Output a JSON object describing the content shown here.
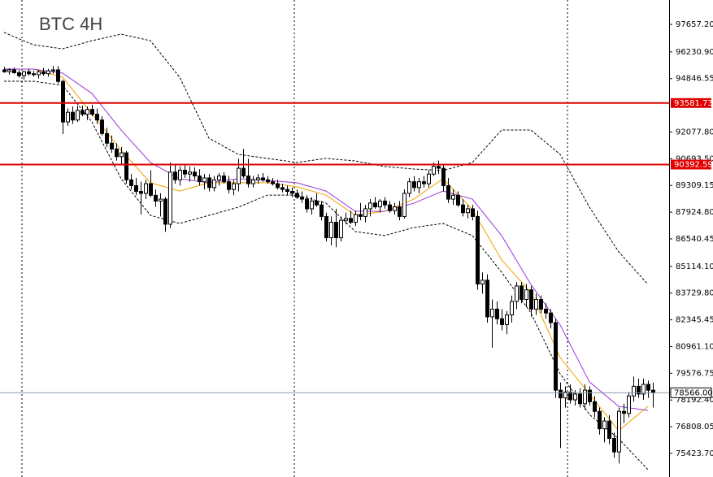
{
  "chart_data": {
    "type": "candlestick",
    "title": "BTC 4H",
    "ylim": [
      74200,
      98920
    ],
    "yticks": [
      {
        "value": 97657.2,
        "label": "97657.20"
      },
      {
        "value": 96230.9,
        "label": "96230.90"
      },
      {
        "value": 94846.55,
        "label": "94846.55"
      },
      {
        "value": 92077.8,
        "label": "92077.80"
      },
      {
        "value": 90693.5,
        "label": "90693.50"
      },
      {
        "value": 89309.15,
        "label": "89309.15"
      },
      {
        "value": 87924.8,
        "label": "87924.80"
      },
      {
        "value": 86540.45,
        "label": "86540.45"
      },
      {
        "value": 85114.1,
        "label": "85114.10"
      },
      {
        "value": 83729.8,
        "label": "83729.80"
      },
      {
        "value": 82345.45,
        "label": "82345.45"
      },
      {
        "value": 80961.1,
        "label": "80961.10"
      },
      {
        "value": 79576.75,
        "label": "79576.75"
      },
      {
        "value": 78192.4,
        "label": "78192.40"
      },
      {
        "value": 76808.05,
        "label": "76808.05"
      },
      {
        "value": 75423.7,
        "label": "75423.70"
      }
    ],
    "levels": [
      {
        "value": 93581.73,
        "color": "#e00000"
      },
      {
        "value": 90392.59,
        "color": "#e00000"
      }
    ],
    "last_price": {
      "value": 78566,
      "label": "78566.00",
      "color": "#8a9aa8"
    },
    "ohlc": [
      [
        95300,
        95450,
        95150,
        95200
      ],
      [
        95200,
        95380,
        95050,
        95300
      ],
      [
        95300,
        95420,
        95100,
        95150
      ],
      [
        95150,
        95300,
        94900,
        95000
      ],
      [
        95000,
        95250,
        94800,
        95200
      ],
      [
        95200,
        95340,
        95000,
        95100
      ],
      [
        95100,
        95260,
        94950,
        95050
      ],
      [
        95050,
        95300,
        94850,
        95200
      ],
      [
        95200,
        95400,
        95000,
        95100
      ],
      [
        95100,
        95350,
        94950,
        95250
      ],
      [
        95250,
        95500,
        95100,
        95300
      ],
      [
        95300,
        95500,
        94600,
        94700
      ],
      [
        94700,
        94800,
        91970,
        92600
      ],
      [
        92600,
        93300,
        92400,
        93100
      ],
      [
        93100,
        93400,
        92500,
        92700
      ],
      [
        92700,
        93450,
        92600,
        93200
      ],
      [
        93200,
        93450,
        92900,
        93000
      ],
      [
        93000,
        93400,
        92700,
        93250
      ],
      [
        93250,
        93500,
        92900,
        93000
      ],
      [
        93000,
        93300,
        92500,
        92700
      ],
      [
        92700,
        92900,
        91900,
        92000
      ],
      [
        92000,
        92300,
        91300,
        91500
      ],
      [
        91500,
        91900,
        91000,
        91200
      ],
      [
        91200,
        91500,
        90600,
        90800
      ],
      [
        90800,
        91300,
        90400,
        91000
      ],
      [
        91000,
        91100,
        89400,
        89600
      ],
      [
        89600,
        89900,
        89100,
        89300
      ],
      [
        89300,
        89700,
        88800,
        89000
      ],
      [
        89000,
        89500,
        87800,
        88900
      ],
      [
        88900,
        89600,
        88600,
        89400
      ],
      [
        89400,
        90100,
        88700,
        88800
      ],
      [
        88800,
        89100,
        88200,
        88500
      ],
      [
        88500,
        88900,
        87700,
        88600
      ],
      [
        88600,
        88700,
        86900,
        87300
      ],
      [
        87300,
        90500,
        87100,
        90000
      ],
      [
        90000,
        90400,
        89400,
        89600
      ],
      [
        89600,
        90300,
        89300,
        90100
      ],
      [
        90100,
        90400,
        89700,
        89900
      ],
      [
        89900,
        90300,
        89500,
        90000
      ],
      [
        90000,
        90250,
        89600,
        89800
      ],
      [
        89800,
        90150,
        89300,
        89500
      ],
      [
        89500,
        89900,
        89100,
        89700
      ],
      [
        89700,
        89900,
        89000,
        89200
      ],
      [
        89200,
        89800,
        89000,
        89600
      ],
      [
        89600,
        89950,
        89300,
        89800
      ],
      [
        89800,
        90000,
        89400,
        89500
      ],
      [
        89500,
        89800,
        88900,
        89100
      ],
      [
        89100,
        89600,
        88800,
        89400
      ],
      [
        89400,
        90700,
        89000,
        90200
      ],
      [
        90200,
        91200,
        89700,
        89800
      ],
      [
        89800,
        90700,
        89200,
        89400
      ],
      [
        89400,
        89800,
        89200,
        89600
      ],
      [
        89600,
        89900,
        89400,
        89700
      ],
      [
        89700,
        89950,
        89500,
        89600
      ],
      [
        89600,
        89800,
        89400,
        89500
      ],
      [
        89500,
        89700,
        89300,
        89400
      ],
      [
        89400,
        89600,
        89100,
        89200
      ],
      [
        89200,
        89400,
        88950,
        89100
      ],
      [
        89100,
        89300,
        88800,
        89000
      ],
      [
        89000,
        89200,
        88700,
        88900
      ],
      [
        88900,
        89100,
        88600,
        88700
      ],
      [
        88700,
        89000,
        88400,
        88600
      ],
      [
        88600,
        88800,
        87900,
        88100
      ],
      [
        88100,
        88700,
        87800,
        88500
      ],
      [
        88500,
        88900,
        88200,
        88300
      ],
      [
        88300,
        88500,
        87500,
        87700
      ],
      [
        87700,
        87900,
        86400,
        86600
      ],
      [
        86600,
        87700,
        86200,
        87400
      ],
      [
        87400,
        88100,
        86100,
        86600
      ],
      [
        86600,
        87700,
        86400,
        87500
      ],
      [
        87500,
        87900,
        87300,
        87600
      ],
      [
        87600,
        88000,
        87300,
        87400
      ],
      [
        87400,
        88000,
        87200,
        87800
      ],
      [
        87800,
        88400,
        87500,
        87700
      ],
      [
        87700,
        88300,
        87400,
        88100
      ],
      [
        88100,
        88600,
        87700,
        88400
      ],
      [
        88400,
        88700,
        88100,
        88200
      ],
      [
        88200,
        88600,
        87900,
        88500
      ],
      [
        88500,
        88700,
        88100,
        88300
      ],
      [
        88300,
        88500,
        87900,
        88000
      ],
      [
        88000,
        88400,
        87800,
        88200
      ],
      [
        88200,
        88500,
        87500,
        87700
      ],
      [
        87700,
        89100,
        87600,
        88900
      ],
      [
        88900,
        89700,
        88700,
        89500
      ],
      [
        89500,
        89800,
        89000,
        89200
      ],
      [
        89200,
        89700,
        88900,
        89500
      ],
      [
        89500,
        89800,
        89200,
        89400
      ],
      [
        89400,
        90100,
        89200,
        89900
      ],
      [
        89900,
        90500,
        89800,
        90300
      ],
      [
        90300,
        90600,
        89900,
        90200
      ],
      [
        90200,
        90400,
        89000,
        89300
      ],
      [
        89300,
        89700,
        88400,
        88600
      ],
      [
        88600,
        89100,
        88300,
        88800
      ],
      [
        88800,
        89000,
        88200,
        88300
      ],
      [
        88300,
        88600,
        87700,
        87900
      ],
      [
        87900,
        88300,
        87600,
        88100
      ],
      [
        88100,
        88300,
        87500,
        87700
      ],
      [
        87700,
        88000,
        83900,
        84200
      ],
      [
        84200,
        84800,
        83700,
        84400
      ],
      [
        84400,
        84700,
        82200,
        82500
      ],
      [
        82500,
        83400,
        80900,
        82900
      ],
      [
        82900,
        83300,
        82100,
        82400
      ],
      [
        82400,
        82900,
        81800,
        82100
      ],
      [
        82100,
        82800,
        81600,
        82600
      ],
      [
        82600,
        83600,
        82200,
        83300
      ],
      [
        83300,
        84300,
        82900,
        84100
      ],
      [
        84100,
        84300,
        83200,
        83400
      ],
      [
        83400,
        84200,
        83000,
        83900
      ],
      [
        83900,
        84100,
        82500,
        82900
      ],
      [
        82900,
        83700,
        82600,
        83400
      ],
      [
        83400,
        83600,
        82700,
        82900
      ],
      [
        82900,
        83200,
        82400,
        82700
      ],
      [
        82700,
        82900,
        81900,
        82200
      ],
      [
        82200,
        82400,
        78300,
        78700
      ],
      [
        78700,
        79100,
        75700,
        78300
      ],
      [
        78300,
        78900,
        77800,
        78600
      ],
      [
        78600,
        79000,
        78000,
        78200
      ],
      [
        78200,
        78700,
        77900,
        78500
      ],
      [
        78500,
        78800,
        77800,
        78000
      ],
      [
        78000,
        79000,
        77700,
        78700
      ],
      [
        78700,
        78900,
        77900,
        78100
      ],
      [
        78100,
        78400,
        77300,
        77600
      ],
      [
        77600,
        77800,
        76400,
        76700
      ],
      [
        76700,
        77300,
        76000,
        77100
      ],
      [
        77100,
        77400,
        75900,
        76200
      ],
      [
        76200,
        76500,
        75200,
        75500
      ],
      [
        75500,
        77800,
        74900,
        77600
      ],
      [
        77600,
        78000,
        77000,
        77500
      ],
      [
        77500,
        78600,
        77300,
        78400
      ],
      [
        78400,
        79400,
        78100,
        78900
      ],
      [
        78900,
        79300,
        78300,
        78500
      ],
      [
        78500,
        79300,
        78200,
        79000
      ],
      [
        79000,
        79200,
        78300,
        78700
      ],
      [
        78700,
        79100,
        77800,
        78566
      ]
    ],
    "lines": [
      {
        "color": "#000000",
        "dashed": true,
        "x": [
          0,
          6,
          12,
          18,
          24,
          30,
          36,
          42,
          48,
          54,
          60,
          66,
          72,
          78,
          84,
          90,
          96,
          102,
          108,
          114,
          120,
          126,
          132
        ],
        "values": [
          97240,
          96600,
          96390,
          96810,
          97150,
          96810,
          94920,
          91760,
          90920,
          90710,
          90500,
          90710,
          90580,
          90290,
          90160,
          90080,
          90500,
          92180,
          92180,
          90920,
          88180,
          85870,
          84180
        ]
      },
      {
        "color": "#000000",
        "dashed": true,
        "x": [
          0,
          6,
          12,
          18,
          24,
          30,
          36,
          42,
          48,
          54,
          60,
          66,
          72,
          78,
          84,
          90,
          96,
          102,
          108,
          114,
          120,
          126,
          132
        ],
        "values": [
          94710,
          94710,
          94500,
          92600,
          89660,
          87760,
          87340,
          87760,
          88180,
          88810,
          88810,
          88390,
          86920,
          86710,
          87130,
          87340,
          86710,
          84810,
          82710,
          79550,
          77440,
          76180,
          74580
        ]
      },
      {
        "color": "#f0a000",
        "dashed": false,
        "x": [
          0,
          6,
          12,
          18,
          24,
          30,
          36,
          42,
          48,
          54,
          60,
          66,
          72,
          78,
          84,
          90,
          96,
          102,
          108,
          114,
          120,
          126,
          132
        ],
        "values": [
          95340,
          95340,
          94920,
          93030,
          91130,
          89450,
          89020,
          89450,
          89450,
          89450,
          89240,
          88810,
          87760,
          87970,
          88600,
          89660,
          88060,
          85450,
          83760,
          80390,
          78500,
          76600,
          77860
        ]
      },
      {
        "color": "#9a3ad8",
        "dashed": false,
        "x": [
          0,
          6,
          12,
          18,
          24,
          30,
          36,
          42,
          48,
          54,
          60,
          66,
          72,
          78,
          84,
          90,
          96,
          102,
          108,
          114,
          120,
          126,
          132
        ],
        "values": [
          95340,
          95340,
          95130,
          94080,
          92180,
          90500,
          89660,
          89450,
          89660,
          89570,
          89450,
          89020,
          87970,
          87970,
          88390,
          89020,
          88600,
          86710,
          84180,
          82080,
          79130,
          77860,
          77650
        ]
      }
    ]
  }
}
